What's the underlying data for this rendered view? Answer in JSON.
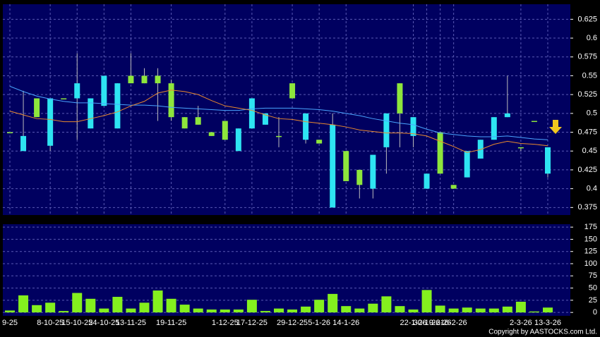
{
  "chart_data": [
    {
      "type": "candlestick",
      "categories": [
        "9-25",
        null,
        null,
        "8-10-25",
        null,
        "15-10-25",
        null,
        "24-10-25",
        null,
        "13-11-25",
        null,
        null,
        "19-11-25",
        null,
        null,
        null,
        "1-12-25",
        null,
        "17-12-25",
        null,
        null,
        "29-12-25",
        null,
        "5-1-26",
        null,
        "14-1-26",
        null,
        null,
        null,
        null,
        "22-1-26",
        "30-1-26",
        "9-2-26",
        "16-2-26",
        null,
        null,
        null,
        null,
        "2-3-26",
        null,
        "13-3-26"
      ],
      "open": [
        0.475,
        0.47,
        0.495,
        0.52,
        0.52,
        0.54,
        0.52,
        0.55,
        0.54,
        0.54,
        0.54,
        0.54,
        0.495,
        0.48,
        0.485,
        0.47,
        0.465,
        0.48,
        0.52,
        0.5,
        0.47,
        0.52,
        0.5,
        0.46,
        0.485,
        0.41,
        0.405,
        0.445,
        0.5,
        0.5,
        0.495,
        0.42,
        0.42,
        0.4,
        0.45,
        0.465,
        0.495,
        0.5,
        0.455,
        0.49,
        0.455
      ],
      "high": [
        0.475,
        0.53,
        0.52,
        0.52,
        0.52,
        0.58,
        0.52,
        0.55,
        0.54,
        0.58,
        0.56,
        0.56,
        0.545,
        0.495,
        0.51,
        0.475,
        0.49,
        0.48,
        0.52,
        0.5,
        0.495,
        0.54,
        0.5,
        0.465,
        0.5,
        0.45,
        0.425,
        0.445,
        0.5,
        0.54,
        0.495,
        0.42,
        0.475,
        0.405,
        0.45,
        0.465,
        0.495,
        0.55,
        0.455,
        0.49,
        0.455
      ],
      "low": [
        0.475,
        0.45,
        0.495,
        0.45,
        0.52,
        0.465,
        0.48,
        0.51,
        0.48,
        0.54,
        0.54,
        0.49,
        0.49,
        0.48,
        0.485,
        0.47,
        0.465,
        0.45,
        0.48,
        0.485,
        0.455,
        0.52,
        0.46,
        0.46,
        0.375,
        0.41,
        0.387,
        0.387,
        0.42,
        0.455,
        0.455,
        0.4,
        0.42,
        0.4,
        0.415,
        0.44,
        0.465,
        0.495,
        0.45,
        0.49,
        0.415
      ],
      "close": [
        0.475,
        0.45,
        0.52,
        0.457,
        0.52,
        0.52,
        0.48,
        0.51,
        0.48,
        0.55,
        0.55,
        0.55,
        0.54,
        0.495,
        0.495,
        0.475,
        0.49,
        0.45,
        0.48,
        0.485,
        0.47,
        0.54,
        0.465,
        0.465,
        0.375,
        0.45,
        0.425,
        0.4,
        0.455,
        0.54,
        0.47,
        0.4,
        0.475,
        0.405,
        0.415,
        0.44,
        0.465,
        0.495,
        0.455,
        0.49,
        0.42
      ],
      "up_color": "#8ee63c",
      "down_color": "#2ee4f2",
      "lines": [
        {
          "color": "#4aa6ff",
          "values": [
            0.536,
            0.529,
            0.523,
            0.519,
            0.516,
            0.514,
            0.514,
            0.513,
            0.512,
            0.511,
            0.511,
            0.51,
            0.508,
            0.507,
            0.506,
            0.505,
            0.504,
            0.504,
            0.506,
            0.507,
            0.507,
            0.507,
            0.506,
            0.505,
            0.503,
            0.5,
            0.497,
            0.493,
            0.49,
            0.487,
            0.485,
            0.479,
            0.474,
            0.472,
            0.47,
            0.469,
            0.469,
            0.47,
            0.468,
            0.466,
            0.465
          ]
        },
        {
          "color": "#e8892e",
          "values": [
            0.503,
            0.498,
            0.493,
            0.492,
            0.489,
            0.489,
            0.493,
            0.497,
            0.502,
            0.51,
            0.516,
            0.527,
            0.531,
            0.529,
            0.525,
            0.517,
            0.51,
            0.507,
            0.504,
            0.498,
            0.493,
            0.492,
            0.489,
            0.487,
            0.485,
            0.482,
            0.478,
            0.476,
            0.474,
            0.474,
            0.473,
            0.47,
            0.463,
            0.456,
            0.448,
            0.452,
            0.459,
            0.463,
            0.46,
            0.459,
            0.457
          ]
        }
      ],
      "ylim": [
        0.365,
        0.645
      ],
      "yticks": [
        0.375,
        0.4,
        0.425,
        0.45,
        0.475,
        0.5,
        0.525,
        0.55,
        0.575,
        0.6,
        0.625
      ],
      "grid": true
    },
    {
      "type": "bar",
      "values": [
        4,
        35,
        15,
        20,
        3,
        40,
        28,
        8,
        32,
        8,
        20,
        45,
        28,
        16,
        8,
        6,
        6,
        6,
        26,
        3,
        8,
        6,
        12,
        26,
        38,
        13,
        8,
        18,
        33,
        13,
        6,
        46,
        14,
        8,
        10,
        8,
        8,
        12,
        22,
        2,
        10
      ],
      "color": "#84f01e",
      "ylim": [
        -7,
        181
      ],
      "yticks": [
        0,
        25,
        50,
        75,
        100,
        125,
        150,
        175
      ],
      "grid": true
    }
  ],
  "footer": "Copyright by AASTOCKS.com Ltd."
}
